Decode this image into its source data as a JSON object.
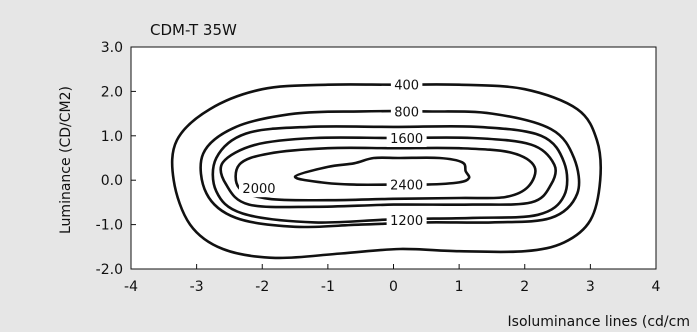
{
  "chart_data": {
    "type": "contour",
    "title": "CDM-T 35W",
    "xlabel": "Isoluminance lines (cd/cm",
    "ylabel": "Luminance (CD/CM2)",
    "xlim": [
      -4,
      4
    ],
    "ylim": [
      -2.0,
      3.0
    ],
    "x_ticks": [
      "-4",
      "-3",
      "-2",
      "-1",
      "0",
      "1",
      "2",
      "3",
      "4"
    ],
    "y_ticks": [
      "3.0",
      "2.0",
      "1.0",
      "0.0",
      "-1.0",
      "-2.0"
    ],
    "background_color": "#e6e6e6",
    "plot_background": "#ffffff",
    "line_color": "#111111",
    "contours": [
      {
        "level": "400",
        "label_at": [
          0.2,
          2.15
        ],
        "points": [
          [
            -3.3,
            0.9
          ],
          [
            -2.8,
            1.6
          ],
          [
            -2.0,
            2.05
          ],
          [
            -1.0,
            2.15
          ],
          [
            0.0,
            2.15
          ],
          [
            1.0,
            2.15
          ],
          [
            2.0,
            2.05
          ],
          [
            2.8,
            1.6
          ],
          [
            3.1,
            0.9
          ],
          [
            3.15,
            0.0
          ],
          [
            3.0,
            -0.9
          ],
          [
            2.6,
            -1.4
          ],
          [
            2.0,
            -1.6
          ],
          [
            1.0,
            -1.6
          ],
          [
            0.1,
            -1.55
          ],
          [
            -0.8,
            -1.65
          ],
          [
            -1.8,
            -1.75
          ],
          [
            -2.6,
            -1.55
          ],
          [
            -3.1,
            -1.0
          ],
          [
            -3.35,
            0.0
          ]
        ]
      },
      {
        "level": "800",
        "label_at": [
          0.2,
          1.55
        ],
        "points": [
          [
            -2.9,
            0.6
          ],
          [
            -2.4,
            1.2
          ],
          [
            -1.5,
            1.5
          ],
          [
            -0.5,
            1.55
          ],
          [
            0.5,
            1.55
          ],
          [
            1.5,
            1.5
          ],
          [
            2.4,
            1.15
          ],
          [
            2.75,
            0.5
          ],
          [
            2.8,
            -0.3
          ],
          [
            2.4,
            -0.85
          ],
          [
            1.5,
            -0.95
          ],
          [
            0.5,
            -0.95
          ],
          [
            -0.5,
            -1.0
          ],
          [
            -1.5,
            -1.05
          ],
          [
            -2.4,
            -0.85
          ],
          [
            -2.85,
            -0.3
          ]
        ]
      },
      {
        "level": "1600",
        "label_at": [
          0.2,
          0.95
        ],
        "points": [
          [
            -2.6,
            0.4
          ],
          [
            -2.1,
            0.8
          ],
          [
            -1.2,
            0.95
          ],
          [
            0.0,
            0.95
          ],
          [
            1.2,
            0.95
          ],
          [
            2.1,
            0.8
          ],
          [
            2.45,
            0.35
          ],
          [
            2.4,
            -0.1
          ],
          [
            2.1,
            -0.5
          ],
          [
            1.2,
            -0.55
          ],
          [
            0.0,
            -0.55
          ],
          [
            -1.2,
            -0.6
          ],
          [
            -2.2,
            -0.55
          ],
          [
            -2.55,
            -0.1
          ]
        ]
      },
      {
        "level": "1200",
        "label_at": [
          0.2,
          -0.9
        ],
        "points": [
          [
            -2.7,
            0.5
          ],
          [
            -2.25,
            1.05
          ],
          [
            -1.3,
            1.2
          ],
          [
            0.0,
            1.2
          ],
          [
            1.3,
            1.2
          ],
          [
            2.25,
            1.0
          ],
          [
            2.6,
            0.4
          ],
          [
            2.6,
            -0.35
          ],
          [
            2.2,
            -0.78
          ],
          [
            1.2,
            -0.85
          ],
          [
            0.0,
            -0.88
          ],
          [
            -1.2,
            -0.95
          ],
          [
            -2.3,
            -0.75
          ],
          [
            -2.7,
            -0.25
          ]
        ]
      },
      {
        "level": "2000",
        "label_at": [
          -2.05,
          -0.18
        ],
        "points": [
          [
            -2.35,
            0.35
          ],
          [
            -1.9,
            0.6
          ],
          [
            -1.0,
            0.72
          ],
          [
            0.0,
            0.72
          ],
          [
            1.0,
            0.72
          ],
          [
            1.8,
            0.62
          ],
          [
            2.15,
            0.3
          ],
          [
            2.05,
            -0.15
          ],
          [
            1.7,
            -0.38
          ],
          [
            1.0,
            -0.4
          ],
          [
            0.0,
            -0.42
          ],
          [
            -1.0,
            -0.45
          ],
          [
            -1.9,
            -0.42
          ],
          [
            -2.35,
            -0.18
          ]
        ]
      },
      {
        "level": "2400",
        "label_at": [
          0.2,
          -0.1
        ],
        "points": [
          [
            -1.5,
            0.08
          ],
          [
            -1.0,
            0.3
          ],
          [
            -0.6,
            0.38
          ],
          [
            -0.3,
            0.5
          ],
          [
            0.1,
            0.5
          ],
          [
            0.7,
            0.5
          ],
          [
            1.05,
            0.4
          ],
          [
            1.1,
            0.2
          ],
          [
            1.15,
            0.05
          ],
          [
            1.0,
            -0.05
          ],
          [
            0.5,
            -0.1
          ],
          [
            0.0,
            -0.1
          ],
          [
            -0.6,
            -0.1
          ],
          [
            -1.1,
            -0.05
          ]
        ]
      }
    ]
  }
}
